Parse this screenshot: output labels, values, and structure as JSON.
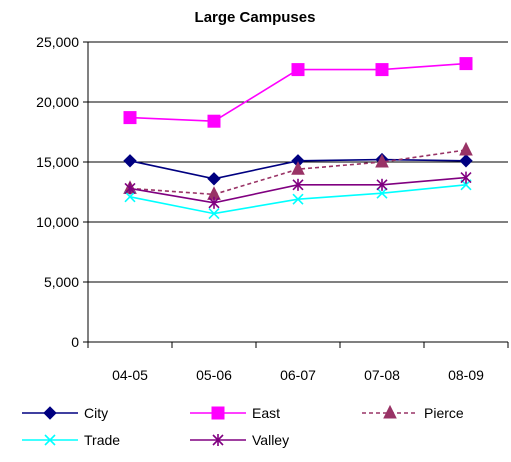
{
  "chart_data": {
    "type": "line",
    "title": "Large Campuses",
    "xlabel": "",
    "ylabel": "",
    "categories": [
      "04-05",
      "05-06",
      "06-07",
      "07-08",
      "08-09"
    ],
    "ylim": [
      0,
      25000
    ],
    "yticks": [
      0,
      5000,
      10000,
      15000,
      20000,
      25000
    ],
    "ytick_labels": [
      "0",
      "5,000",
      "10,000",
      "15,000",
      "20,000",
      "25,000"
    ],
    "grid": true,
    "legend_position": "bottom",
    "series": [
      {
        "name": "City",
        "values": [
          15100,
          13600,
          15100,
          15200,
          15100
        ],
        "color": "#000080",
        "marker": "diamond",
        "dash": "solid"
      },
      {
        "name": "East",
        "values": [
          18700,
          18400,
          22700,
          22700,
          23200
        ],
        "color": "#ff00ff",
        "marker": "square",
        "dash": "solid"
      },
      {
        "name": "Pierce",
        "values": [
          12800,
          12300,
          14400,
          15000,
          16000
        ],
        "color": "#993366",
        "marker": "triangle",
        "dash": "dashed"
      },
      {
        "name": "Trade",
        "values": [
          12100,
          10700,
          11900,
          12400,
          13100
        ],
        "color": "#00ffff",
        "marker": "x",
        "dash": "solid"
      },
      {
        "name": "Valley",
        "values": [
          12800,
          11600,
          13100,
          13100,
          13700
        ],
        "color": "#800080",
        "marker": "star",
        "dash": "solid"
      }
    ]
  }
}
